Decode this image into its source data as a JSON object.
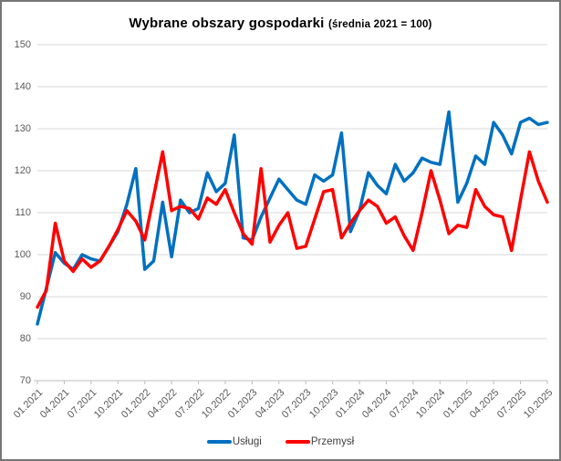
{
  "title": {
    "main": "Wybrane obszary gospodarki",
    "sub": "(średnia 2021 = 100)"
  },
  "legend": {
    "items": [
      {
        "label": "Usługi",
        "color": "#0070C0"
      },
      {
        "label": "Przemysł",
        "color": "#FF0000"
      }
    ]
  },
  "chart_data": {
    "type": "line",
    "title": "Wybrane obszary gospodarki (średnia 2021 = 100)",
    "x": [
      "01.2021",
      "02.2021",
      "03.2021",
      "04.2021",
      "05.2021",
      "06.2021",
      "07.2021",
      "08.2021",
      "09.2021",
      "10.2021",
      "11.2021",
      "12.2021",
      "01.2022",
      "02.2022",
      "03.2022",
      "04.2022",
      "05.2022",
      "06.2022",
      "07.2022",
      "08.2022",
      "09.2022",
      "10.2022",
      "11.2022",
      "12.2022",
      "01.2023",
      "02.2023",
      "03.2023",
      "04.2023",
      "05.2023",
      "06.2023",
      "07.2023",
      "08.2023",
      "09.2023",
      "10.2023",
      "11.2023",
      "12.2023",
      "01.2024",
      "02.2024",
      "03.2024",
      "04.2024",
      "05.2024",
      "06.2024",
      "07.2024",
      "08.2024",
      "09.2024",
      "10.2024",
      "11.2024",
      "12.2024",
      "01.2025",
      "02.2025",
      "03.2025",
      "04.2025",
      "05.2025",
      "06.2025",
      "07.2025",
      "08.2025",
      "09.2025",
      "10.2025"
    ],
    "series": [
      {
        "name": "Usługi",
        "color": "#0070C0",
        "values": [
          83.5,
          92,
          100.5,
          98,
          96.5,
          100,
          99,
          98.5,
          102,
          105.5,
          112,
          120.5,
          96.5,
          98.5,
          112.5,
          99.5,
          113,
          110,
          111,
          119.5,
          115,
          117,
          128.5,
          104,
          103.5,
          109,
          113.5,
          118,
          115.5,
          113,
          112,
          119,
          117.5,
          119,
          129,
          105.5,
          110.5,
          119.5,
          116.5,
          114.5,
          121.5,
          117.5,
          119.5,
          123,
          122,
          121.5,
          134,
          112.5,
          117,
          123.5,
          121.5,
          131.5,
          128.5,
          124,
          131.5,
          132.5,
          131,
          131.5
        ]
      },
      {
        "name": "Przemysł",
        "color": "#FF0000",
        "values": [
          87.5,
          91.5,
          107.5,
          98.5,
          96,
          99,
          97,
          98.5,
          102,
          106,
          110.5,
          108,
          103.5,
          114,
          124.5,
          110.5,
          111.5,
          111,
          108.5,
          113.5,
          112,
          115.5,
          110,
          105,
          102.5,
          120.5,
          103,
          107,
          110,
          101.5,
          102,
          108.5,
          115,
          115.5,
          104,
          107.5,
          110.5,
          113,
          111.5,
          107.5,
          109,
          104.5,
          101,
          110,
          120,
          113,
          105,
          107,
          106.5,
          115.5,
          111.5,
          109.5,
          109,
          101,
          113,
          124.5,
          117.5,
          112.5
        ]
      }
    ],
    "ylim": [
      70,
      150
    ],
    "yticks": [
      150,
      140,
      130,
      120,
      110,
      100,
      90,
      80,
      70
    ],
    "xticks": [
      "01.2021",
      "04.2021",
      "07.2021",
      "10.2021",
      "01.2022",
      "04.2022",
      "07.2022",
      "10.2022",
      "01.2023",
      "04.2023",
      "07.2023",
      "10.2023",
      "01.2024",
      "04.2024",
      "07.2024",
      "10.2024",
      "01.2025",
      "04.2025",
      "07.2025",
      "10.2025"
    ],
    "grid": true,
    "legend_position": "bottom",
    "grid_color": "#D9D9D9",
    "axis_color": "#BFBFBF",
    "label_color": "#595959"
  }
}
